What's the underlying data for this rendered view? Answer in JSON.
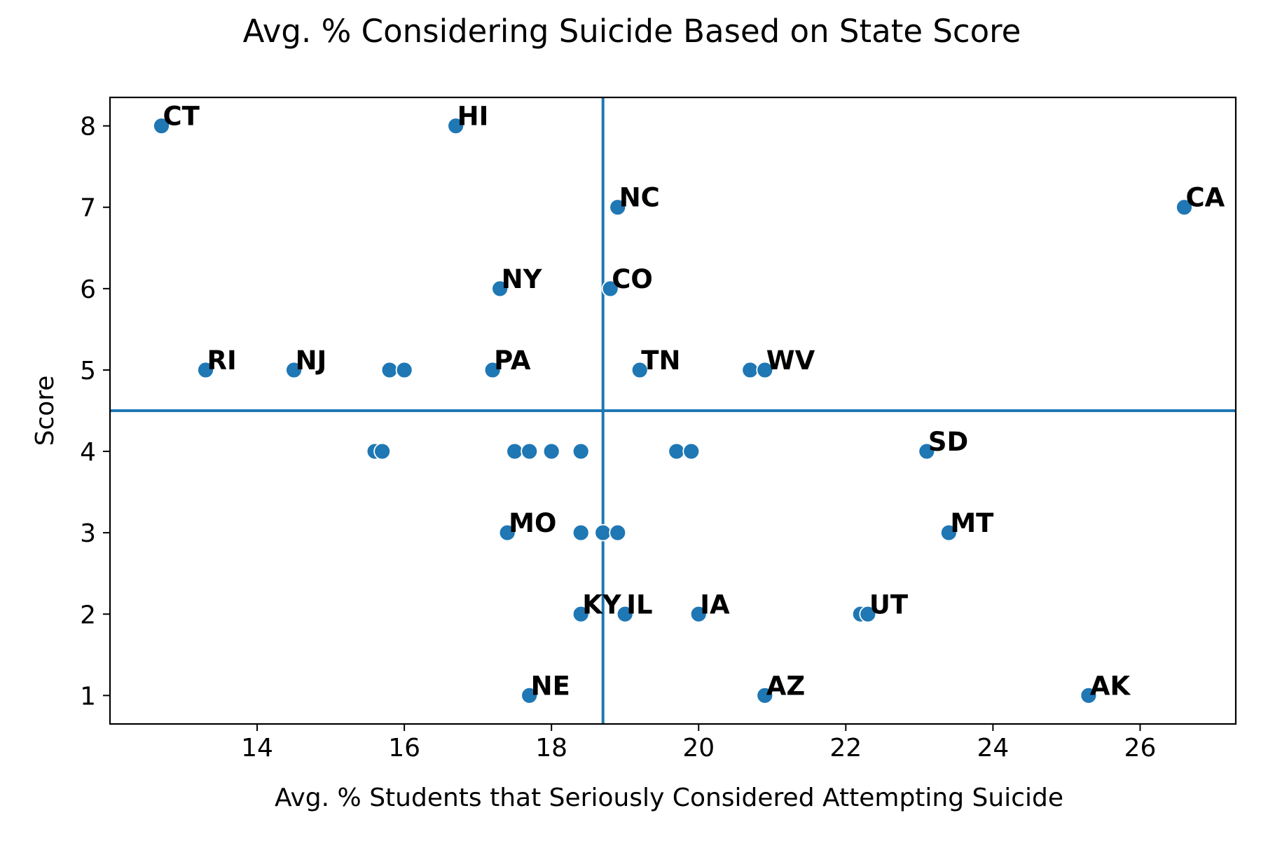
{
  "chart_data": {
    "type": "scatter",
    "title": "Avg. % Considering Suicide Based on State Score",
    "xlabel": "Avg. % Students that Seriously Considered Attempting Suicide",
    "ylabel": "Score",
    "xlim": [
      12,
      27.3
    ],
    "ylim": [
      0.65,
      8.35
    ],
    "xticks": [
      14,
      16,
      18,
      20,
      22,
      24,
      26
    ],
    "yticks": [
      1,
      2,
      3,
      4,
      5,
      6,
      7,
      8
    ],
    "grid": false,
    "point_color": "#1f77b4",
    "reference_lines": {
      "vertical_x": 18.7,
      "horizontal_y": 4.5,
      "color": "#1f77b4"
    },
    "points": [
      {
        "x": 12.7,
        "y": 8,
        "label": "CT"
      },
      {
        "x": 16.7,
        "y": 8,
        "label": "HI"
      },
      {
        "x": 18.9,
        "y": 7,
        "label": "NC"
      },
      {
        "x": 26.6,
        "y": 7,
        "label": "CA"
      },
      {
        "x": 17.3,
        "y": 6,
        "label": "NY"
      },
      {
        "x": 18.8,
        "y": 6,
        "label": "CO"
      },
      {
        "x": 13.3,
        "y": 5,
        "label": "RI"
      },
      {
        "x": 14.5,
        "y": 5,
        "label": "NJ"
      },
      {
        "x": 15.8,
        "y": 5,
        "label": ""
      },
      {
        "x": 16.0,
        "y": 5,
        "label": ""
      },
      {
        "x": 17.2,
        "y": 5,
        "label": "PA"
      },
      {
        "x": 19.2,
        "y": 5,
        "label": "TN"
      },
      {
        "x": 20.7,
        "y": 5,
        "label": ""
      },
      {
        "x": 20.9,
        "y": 5,
        "label": "WV"
      },
      {
        "x": 15.6,
        "y": 4,
        "label": ""
      },
      {
        "x": 15.7,
        "y": 4,
        "label": ""
      },
      {
        "x": 17.5,
        "y": 4,
        "label": ""
      },
      {
        "x": 17.7,
        "y": 4,
        "label": ""
      },
      {
        "x": 18.0,
        "y": 4,
        "label": ""
      },
      {
        "x": 18.4,
        "y": 4,
        "label": ""
      },
      {
        "x": 19.7,
        "y": 4,
        "label": ""
      },
      {
        "x": 19.9,
        "y": 4,
        "label": ""
      },
      {
        "x": 23.1,
        "y": 4,
        "label": "SD"
      },
      {
        "x": 17.4,
        "y": 3,
        "label": "MO"
      },
      {
        "x": 18.4,
        "y": 3,
        "label": ""
      },
      {
        "x": 18.7,
        "y": 3,
        "label": ""
      },
      {
        "x": 18.9,
        "y": 3,
        "label": ""
      },
      {
        "x": 23.4,
        "y": 3,
        "label": "MT"
      },
      {
        "x": 18.4,
        "y": 2,
        "label": "KY"
      },
      {
        "x": 19.0,
        "y": 2,
        "label": "IL"
      },
      {
        "x": 20.0,
        "y": 2,
        "label": "IA"
      },
      {
        "x": 22.2,
        "y": 2,
        "label": ""
      },
      {
        "x": 22.3,
        "y": 2,
        "label": "UT"
      },
      {
        "x": 17.7,
        "y": 1,
        "label": "NE"
      },
      {
        "x": 20.9,
        "y": 1,
        "label": "AZ"
      },
      {
        "x": 25.3,
        "y": 1,
        "label": "AK"
      }
    ]
  }
}
